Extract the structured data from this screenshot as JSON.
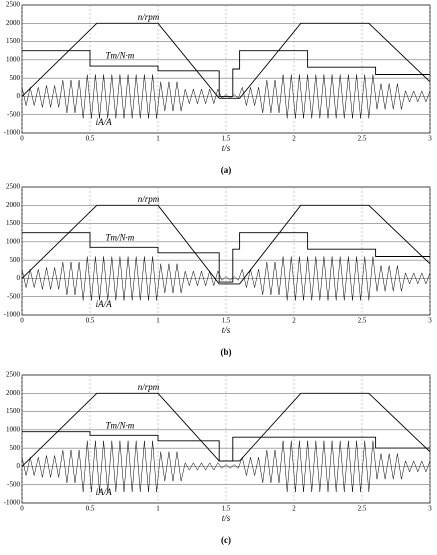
{
  "chart_data": [
    {
      "type": "line",
      "caption": "(a)",
      "xlabel": "t/s",
      "xlim": [
        0,
        3
      ],
      "ylim": [
        -1000,
        2500
      ],
      "xticks": [
        0,
        0.5,
        1,
        1.5,
        2,
        2.5,
        3
      ],
      "yticks": [
        -1000,
        -500,
        0,
        500,
        1000,
        1500,
        2000,
        2500
      ],
      "grid": true,
      "series": [
        {
          "name": "n/rpm",
          "color": "#000000",
          "x": [
            0,
            0.55,
            1.0,
            1.45,
            1.6,
            2.05,
            2.55,
            3.0
          ],
          "values": [
            0,
            2000,
            2000,
            -50,
            -50,
            2000,
            2000,
            400
          ]
        },
        {
          "name": "Tm/N·m",
          "color": "#000000",
          "x": [
            0,
            0.5,
            0.5,
            1.0,
            1.0,
            1.45,
            1.45,
            1.55,
            1.55,
            1.6,
            1.6,
            2.1,
            2.1,
            2.6,
            2.6,
            3.0
          ],
          "values": [
            1250,
            1250,
            830,
            830,
            700,
            700,
            0,
            0,
            750,
            750,
            1250,
            1250,
            800,
            800,
            600,
            600
          ]
        },
        {
          "name": "iA/A",
          "color": "#000000",
          "x": [
            0,
            0.03,
            0.06,
            0.09,
            0.12,
            0.15,
            0.18,
            0.21,
            0.24,
            0.27,
            0.3,
            0.33,
            0.36,
            0.39,
            0.42,
            0.45,
            0.48,
            0.51,
            0.54,
            0.57,
            0.6,
            0.63,
            0.66,
            0.69,
            0.72,
            0.75,
            0.78,
            0.81,
            0.84,
            0.87,
            0.9,
            0.93,
            0.96,
            0.99,
            1.02,
            1.05,
            1.08,
            1.11,
            1.14,
            1.17,
            1.2,
            1.23,
            1.26,
            1.29,
            1.32,
            1.35,
            1.38,
            1.41,
            1.44,
            1.47,
            1.5,
            1.53,
            1.56,
            1.59,
            1.62,
            1.65,
            1.68,
            1.71,
            1.74,
            1.77,
            1.8,
            1.83,
            1.86,
            1.89,
            1.92,
            1.95,
            1.98,
            2.01,
            2.04,
            2.07,
            2.1,
            2.13,
            2.16,
            2.19,
            2.22,
            2.25,
            2.28,
            2.31,
            2.34,
            2.37,
            2.4,
            2.43,
            2.46,
            2.49,
            2.52,
            2.55,
            2.58,
            2.61,
            2.64,
            2.67,
            2.7,
            2.73,
            2.76,
            2.79,
            2.82,
            2.85,
            2.88,
            2.91,
            2.94,
            2.97,
            3.0
          ],
          "values": [
            250,
            -250,
            250,
            -250,
            250,
            -300,
            300,
            -300,
            300,
            -300,
            450,
            -450,
            450,
            -450,
            450,
            -600,
            600,
            -600,
            600,
            -600,
            600,
            -600,
            600,
            -600,
            600,
            -600,
            600,
            -600,
            600,
            -600,
            600,
            -600,
            600,
            -600,
            400,
            -400,
            400,
            -400,
            400,
            -400,
            200,
            -200,
            200,
            -200,
            200,
            -200,
            200,
            -200,
            200,
            -50,
            50,
            -50,
            50,
            -50,
            250,
            -250,
            250,
            -250,
            250,
            -450,
            450,
            -450,
            450,
            -450,
            600,
            -600,
            600,
            -600,
            600,
            -600,
            600,
            -600,
            600,
            -600,
            600,
            -600,
            600,
            -600,
            600,
            -600,
            600,
            -600,
            600,
            -600,
            600,
            -600,
            600,
            -350,
            350,
            -350,
            350,
            -350,
            350,
            -350,
            150,
            -150,
            150,
            -150,
            150,
            -150,
            150
          ]
        }
      ]
    },
    {
      "type": "line",
      "caption": "(b)",
      "xlabel": "t/s",
      "xlim": [
        0,
        3
      ],
      "ylim": [
        -1000,
        2500
      ],
      "xticks": [
        0,
        0.5,
        1,
        1.5,
        2,
        2.5,
        3
      ],
      "yticks": [
        -1000,
        -500,
        0,
        500,
        1000,
        1500,
        2000,
        2500
      ],
      "grid": true,
      "series": [
        {
          "name": "n/rpm",
          "color": "#000000",
          "x": [
            0,
            0.55,
            1.0,
            1.45,
            1.6,
            2.05,
            2.55,
            3.0
          ],
          "values": [
            0,
            2000,
            2000,
            -150,
            -150,
            2000,
            2000,
            400
          ]
        },
        {
          "name": "Tm/N·m",
          "color": "#000000",
          "x": [
            0,
            0.5,
            0.5,
            1.0,
            1.0,
            1.45,
            1.45,
            1.55,
            1.55,
            1.6,
            1.6,
            2.1,
            2.1,
            2.6,
            2.6,
            3.0
          ],
          "values": [
            1250,
            1250,
            850,
            850,
            700,
            700,
            -100,
            -100,
            800,
            800,
            1250,
            1250,
            800,
            800,
            600,
            600
          ]
        },
        {
          "name": "iA/A",
          "color": "#000000",
          "x": [
            0,
            0.03,
            0.06,
            0.09,
            0.12,
            0.15,
            0.18,
            0.21,
            0.24,
            0.27,
            0.3,
            0.33,
            0.36,
            0.39,
            0.42,
            0.45,
            0.48,
            0.51,
            0.54,
            0.57,
            0.6,
            0.63,
            0.66,
            0.69,
            0.72,
            0.75,
            0.78,
            0.81,
            0.84,
            0.87,
            0.9,
            0.93,
            0.96,
            0.99,
            1.02,
            1.05,
            1.08,
            1.11,
            1.14,
            1.17,
            1.2,
            1.23,
            1.26,
            1.29,
            1.32,
            1.35,
            1.38,
            1.41,
            1.44,
            1.47,
            1.5,
            1.53,
            1.56,
            1.59,
            1.62,
            1.65,
            1.68,
            1.71,
            1.74,
            1.77,
            1.8,
            1.83,
            1.86,
            1.89,
            1.92,
            1.95,
            1.98,
            2.01,
            2.04,
            2.07,
            2.1,
            2.13,
            2.16,
            2.19,
            2.22,
            2.25,
            2.28,
            2.31,
            2.34,
            2.37,
            2.4,
            2.43,
            2.46,
            2.49,
            2.52,
            2.55,
            2.58,
            2.61,
            2.64,
            2.67,
            2.7,
            2.73,
            2.76,
            2.79,
            2.82,
            2.85,
            2.88,
            2.91,
            2.94,
            2.97,
            3.0
          ],
          "values": [
            250,
            -250,
            250,
            -250,
            250,
            -300,
            300,
            -300,
            300,
            -300,
            450,
            -450,
            450,
            -450,
            450,
            -600,
            600,
            -600,
            600,
            -600,
            600,
            -600,
            600,
            -600,
            600,
            -600,
            600,
            -600,
            600,
            -600,
            600,
            -600,
            600,
            -600,
            400,
            -400,
            400,
            -400,
            400,
            -400,
            200,
            -200,
            200,
            -200,
            200,
            -200,
            200,
            -200,
            200,
            -50,
            50,
            -50,
            50,
            -50,
            250,
            -250,
            250,
            -250,
            250,
            -450,
            450,
            -450,
            450,
            -450,
            600,
            -600,
            600,
            -600,
            600,
            -600,
            600,
            -600,
            600,
            -600,
            600,
            -600,
            600,
            -600,
            600,
            -600,
            600,
            -600,
            600,
            -600,
            600,
            -600,
            600,
            -350,
            350,
            -350,
            350,
            -350,
            350,
            -350,
            150,
            -150,
            150,
            -150,
            150,
            -150,
            150
          ]
        }
      ]
    },
    {
      "type": "line",
      "caption": "(c)",
      "xlabel": "t/s",
      "xlim": [
        0,
        3
      ],
      "ylim": [
        -1000,
        2500
      ],
      "xticks": [
        0,
        0.5,
        1,
        1.5,
        2,
        2.5,
        3
      ],
      "yticks": [
        -1000,
        -500,
        0,
        500,
        1000,
        1500,
        2000,
        2500
      ],
      "grid": true,
      "series": [
        {
          "name": "n/rpm",
          "color": "#000000",
          "x": [
            0,
            0.55,
            1.0,
            1.45,
            1.6,
            2.05,
            2.55,
            3.0
          ],
          "values": [
            0,
            2000,
            2000,
            150,
            150,
            2000,
            2000,
            400
          ]
        },
        {
          "name": "Tm/N·m",
          "color": "#000000",
          "x": [
            0,
            0.5,
            0.5,
            1.0,
            1.0,
            1.45,
            1.45,
            1.55,
            1.55,
            2.1,
            2.1,
            2.6,
            2.6,
            3.0
          ],
          "values": [
            950,
            950,
            850,
            850,
            700,
            700,
            150,
            150,
            800,
            800,
            800,
            800,
            500,
            500
          ]
        },
        {
          "name": "iA/A",
          "color": "#000000",
          "x": [
            0,
            0.03,
            0.06,
            0.09,
            0.12,
            0.15,
            0.18,
            0.21,
            0.24,
            0.27,
            0.3,
            0.33,
            0.36,
            0.39,
            0.42,
            0.45,
            0.48,
            0.51,
            0.54,
            0.57,
            0.6,
            0.63,
            0.66,
            0.69,
            0.72,
            0.75,
            0.78,
            0.81,
            0.84,
            0.87,
            0.9,
            0.93,
            0.96,
            0.99,
            1.02,
            1.05,
            1.08,
            1.11,
            1.14,
            1.17,
            1.2,
            1.23,
            1.26,
            1.29,
            1.32,
            1.35,
            1.38,
            1.41,
            1.44,
            1.47,
            1.5,
            1.53,
            1.56,
            1.59,
            1.62,
            1.65,
            1.68,
            1.71,
            1.74,
            1.77,
            1.8,
            1.83,
            1.86,
            1.89,
            1.92,
            1.95,
            1.98,
            2.01,
            2.04,
            2.07,
            2.1,
            2.13,
            2.16,
            2.19,
            2.22,
            2.25,
            2.28,
            2.31,
            2.34,
            2.37,
            2.4,
            2.43,
            2.46,
            2.49,
            2.52,
            2.55,
            2.58,
            2.61,
            2.64,
            2.67,
            2.7,
            2.73,
            2.76,
            2.79,
            2.82,
            2.85,
            2.88,
            2.91,
            2.94,
            2.97,
            3.0
          ],
          "values": [
            250,
            -250,
            250,
            -250,
            250,
            -300,
            300,
            -300,
            300,
            -300,
            450,
            -450,
            450,
            -450,
            450,
            -700,
            700,
            -700,
            700,
            -700,
            700,
            -700,
            700,
            -700,
            700,
            -700,
            700,
            -700,
            700,
            -700,
            700,
            -700,
            700,
            -700,
            400,
            -400,
            400,
            -400,
            400,
            -400,
            100,
            -100,
            100,
            -100,
            100,
            -100,
            100,
            -100,
            100,
            -50,
            50,
            -50,
            50,
            -50,
            250,
            -250,
            250,
            -250,
            250,
            -450,
            450,
            -450,
            450,
            -450,
            700,
            -700,
            700,
            -700,
            700,
            -700,
            700,
            -700,
            700,
            -700,
            700,
            -700,
            700,
            -700,
            700,
            -700,
            700,
            -700,
            700,
            -700,
            700,
            -700,
            700,
            -350,
            350,
            -350,
            350,
            -350,
            350,
            -350,
            150,
            -150,
            150,
            -150,
            150,
            -150,
            150
          ]
        }
      ]
    }
  ]
}
